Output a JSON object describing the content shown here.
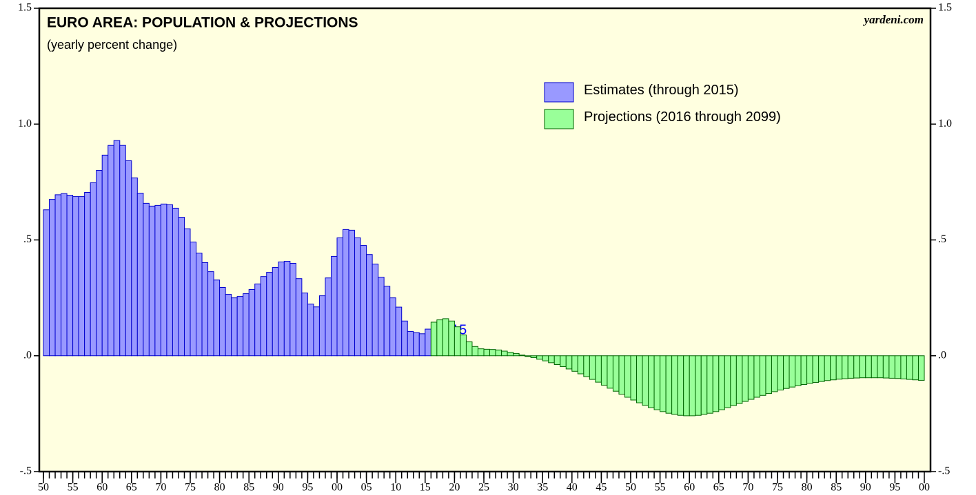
{
  "chart_data": {
    "type": "bar",
    "title": "EURO AREA: POPULATION & PROJECTIONS",
    "subtitle": "(yearly percent change)",
    "source": "yardeni.com",
    "annotation": "15",
    "xlim": [
      1950,
      2100
    ],
    "xticks": [
      {
        "value": 1950,
        "label": "50"
      },
      {
        "value": 1955,
        "label": "55"
      },
      {
        "value": 1960,
        "label": "60"
      },
      {
        "value": 1965,
        "label": "65"
      },
      {
        "value": 1970,
        "label": "70"
      },
      {
        "value": 1975,
        "label": "75"
      },
      {
        "value": 1980,
        "label": "80"
      },
      {
        "value": 1985,
        "label": "85"
      },
      {
        "value": 1990,
        "label": "90"
      },
      {
        "value": 1995,
        "label": "95"
      },
      {
        "value": 2000,
        "label": "00"
      },
      {
        "value": 2005,
        "label": "05"
      },
      {
        "value": 2010,
        "label": "10"
      },
      {
        "value": 2015,
        "label": "15"
      },
      {
        "value": 2020,
        "label": "20"
      },
      {
        "value": 2025,
        "label": "25"
      },
      {
        "value": 2030,
        "label": "30"
      },
      {
        "value": 2035,
        "label": "35"
      },
      {
        "value": 2040,
        "label": "40"
      },
      {
        "value": 2045,
        "label": "45"
      },
      {
        "value": 2050,
        "label": "50"
      },
      {
        "value": 2055,
        "label": "55"
      },
      {
        "value": 2060,
        "label": "60"
      },
      {
        "value": 2065,
        "label": "65"
      },
      {
        "value": 2070,
        "label": "70"
      },
      {
        "value": 2075,
        "label": "75"
      },
      {
        "value": 2080,
        "label": "80"
      },
      {
        "value": 2085,
        "label": "85"
      },
      {
        "value": 2090,
        "label": "90"
      },
      {
        "value": 2095,
        "label": "95"
      },
      {
        "value": 2100,
        "label": "00"
      }
    ],
    "ylim": [
      -0.5,
      1.5
    ],
    "yticks": [
      {
        "value": -0.5,
        "label": "-.5"
      },
      {
        "value": 0,
        "label": ".0"
      },
      {
        "value": 0.5,
        "label": ".5"
      },
      {
        "value": 1.0,
        "label": "1.0"
      },
      {
        "value": 1.5,
        "label": "1.5"
      }
    ],
    "series": [
      {
        "name": "Estimates (through 2015)",
        "color": "#9999ff",
        "edge": "#0000cc",
        "x": [
          1950,
          1951,
          1952,
          1953,
          1954,
          1955,
          1956,
          1957,
          1958,
          1959,
          1960,
          1961,
          1962,
          1963,
          1964,
          1965,
          1966,
          1967,
          1968,
          1969,
          1970,
          1971,
          1972,
          1973,
          1974,
          1975,
          1976,
          1977,
          1978,
          1979,
          1980,
          1981,
          1982,
          1983,
          1984,
          1985,
          1986,
          1987,
          1988,
          1989,
          1990,
          1991,
          1992,
          1993,
          1994,
          1995,
          1996,
          1997,
          1998,
          1999,
          2000,
          2001,
          2002,
          2003,
          2004,
          2005,
          2006,
          2007,
          2008,
          2009,
          2010,
          2011,
          2012,
          2013,
          2014,
          2015
        ],
        "values": [
          0.63,
          0.675,
          0.695,
          0.7,
          0.693,
          0.687,
          0.687,
          0.705,
          0.747,
          0.8,
          0.866,
          0.908,
          0.929,
          0.908,
          0.842,
          0.768,
          0.702,
          0.658,
          0.646,
          0.649,
          0.655,
          0.652,
          0.637,
          0.598,
          0.548,
          0.491,
          0.443,
          0.402,
          0.363,
          0.327,
          0.295,
          0.265,
          0.25,
          0.256,
          0.268,
          0.286,
          0.31,
          0.342,
          0.36,
          0.381,
          0.405,
          0.408,
          0.399,
          0.333,
          0.271,
          0.223,
          0.211,
          0.259,
          0.336,
          0.429,
          0.509,
          0.545,
          0.542,
          0.509,
          0.476,
          0.437,
          0.396,
          0.339,
          0.3,
          0.25,
          0.21,
          0.15,
          0.105,
          0.1,
          0.095,
          0.115
        ]
      },
      {
        "name": "Projections (2016 through 2099)",
        "color": "#99ff99",
        "edge": "#006600",
        "x": [
          2016,
          2017,
          2018,
          2019,
          2020,
          2021,
          2022,
          2023,
          2024,
          2025,
          2026,
          2027,
          2028,
          2029,
          2030,
          2031,
          2032,
          2033,
          2034,
          2035,
          2036,
          2037,
          2038,
          2039,
          2040,
          2041,
          2042,
          2043,
          2044,
          2045,
          2046,
          2047,
          2048,
          2049,
          2050,
          2051,
          2052,
          2053,
          2054,
          2055,
          2056,
          2057,
          2058,
          2059,
          2060,
          2061,
          2062,
          2063,
          2064,
          2065,
          2066,
          2067,
          2068,
          2069,
          2070,
          2071,
          2072,
          2073,
          2074,
          2075,
          2076,
          2077,
          2078,
          2079,
          2080,
          2081,
          2082,
          2083,
          2084,
          2085,
          2086,
          2087,
          2088,
          2089,
          2090,
          2091,
          2092,
          2093,
          2094,
          2095,
          2096,
          2097,
          2098,
          2099
        ],
        "values": [
          0.145,
          0.155,
          0.16,
          0.15,
          0.125,
          0.09,
          0.06,
          0.04,
          0.03,
          0.028,
          0.027,
          0.025,
          0.02,
          0.015,
          0.01,
          0.003,
          -0.003,
          -0.008,
          -0.015,
          -0.022,
          -0.03,
          -0.038,
          -0.047,
          -0.057,
          -0.067,
          -0.078,
          -0.09,
          -0.102,
          -0.114,
          -0.127,
          -0.14,
          -0.153,
          -0.166,
          -0.179,
          -0.191,
          -0.203,
          -0.214,
          -0.224,
          -0.233,
          -0.241,
          -0.248,
          -0.253,
          -0.257,
          -0.259,
          -0.259,
          -0.257,
          -0.253,
          -0.248,
          -0.241,
          -0.233,
          -0.224,
          -0.215,
          -0.206,
          -0.197,
          -0.188,
          -0.179,
          -0.171,
          -0.163,
          -0.155,
          -0.148,
          -0.141,
          -0.135,
          -0.129,
          -0.124,
          -0.119,
          -0.115,
          -0.111,
          -0.107,
          -0.104,
          -0.101,
          -0.099,
          -0.097,
          -0.096,
          -0.095,
          -0.095,
          -0.095,
          -0.095,
          -0.096,
          -0.097,
          -0.098,
          -0.1,
          -0.102,
          -0.104,
          -0.106
        ]
      }
    ]
  }
}
